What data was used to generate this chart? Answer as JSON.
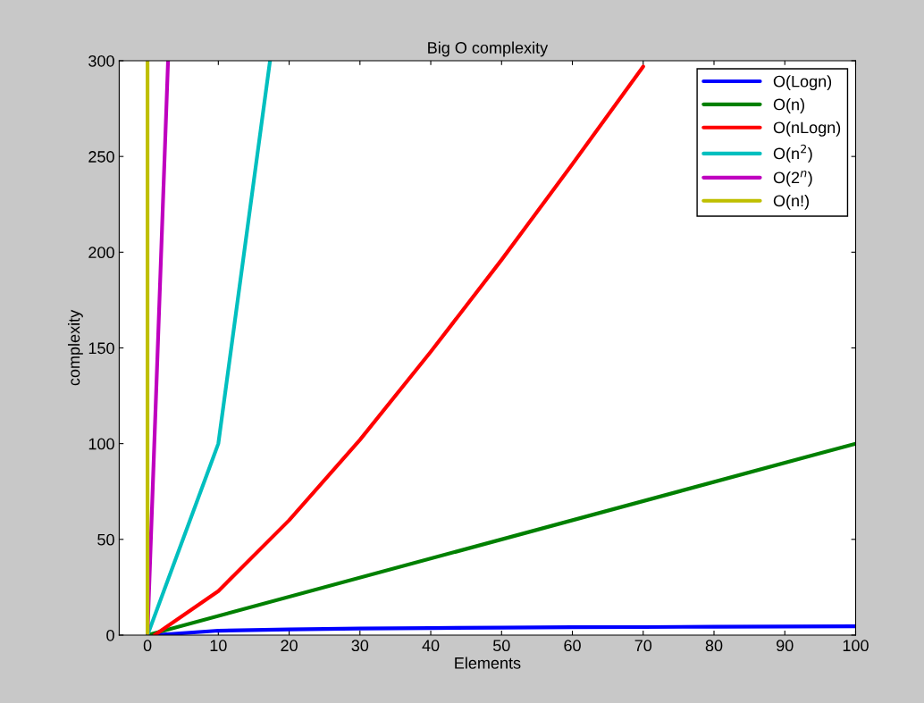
{
  "chart_data": {
    "type": "line",
    "title": "Big O complexity",
    "xlabel": "Elements",
    "ylabel": "complexity",
    "xlim": [
      -4,
      100
    ],
    "xticks": [
      0,
      10,
      20,
      30,
      40,
      50,
      60,
      70,
      80,
      90,
      100
    ],
    "ylim": [
      0,
      300
    ],
    "yticks": [
      0,
      50,
      100,
      150,
      200,
      250,
      300
    ],
    "grid": false,
    "legend": "top right",
    "line_style": "solid",
    "marker": "none",
    "series": [
      {
        "name": "O(Logn)",
        "color": "#0000ff",
        "x": [
          1,
          10,
          20,
          30,
          40,
          50,
          60,
          70,
          80,
          90,
          100
        ],
        "values": [
          0,
          2.3,
          3.0,
          3.4,
          3.7,
          3.9,
          4.1,
          4.2,
          4.4,
          4.5,
          4.6
        ]
      },
      {
        "name": "O(n)",
        "color": "#008000",
        "x": [
          0,
          100
        ],
        "values": [
          0,
          100
        ]
      },
      {
        "name": "O(nLogn)",
        "color": "#ff0000",
        "x": [
          1,
          10,
          20,
          30,
          40,
          50,
          60,
          70
        ],
        "values": [
          0,
          23,
          60,
          102,
          148,
          196,
          246,
          297
        ]
      },
      {
        "name": "O(n$^{2}$)",
        "color": "#00bfbf",
        "x": [
          0,
          10,
          17.3
        ],
        "values": [
          0,
          100,
          300
        ]
      },
      {
        "name": "O(2$^{n}$)",
        "color": "#bf00bf",
        "x": [
          0,
          2.9
        ],
        "values": [
          1,
          300
        ]
      },
      {
        "name": "O(n!)",
        "color": "#bfbf00",
        "x": [
          0,
          0
        ],
        "values": [
          1,
          300
        ]
      }
    ]
  }
}
